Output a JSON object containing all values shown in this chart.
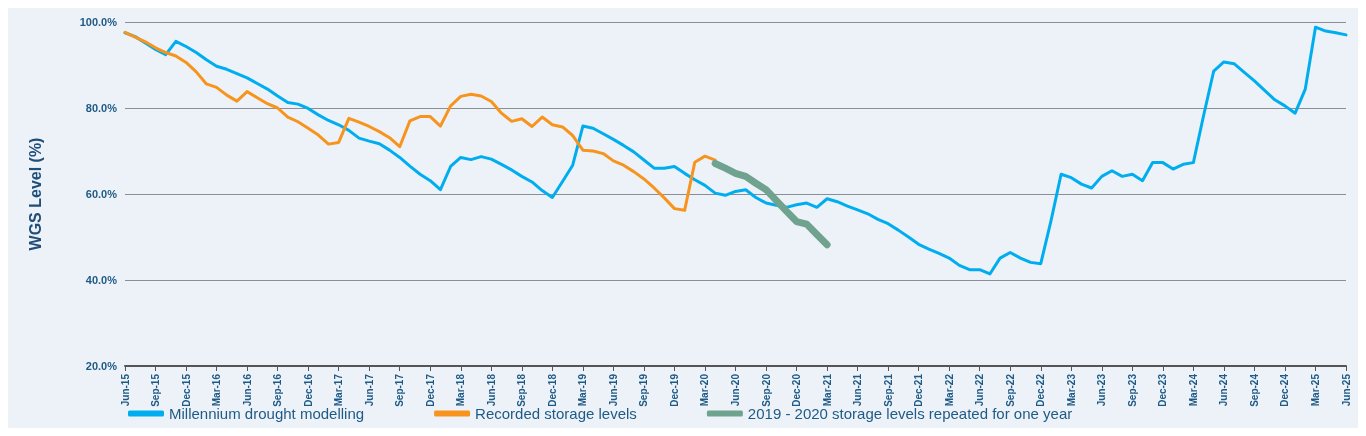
{
  "chart_data": {
    "type": "line",
    "ylabel": "WGS Level (%)",
    "categories": [
      "Jun-15",
      null,
      null,
      "Sep-15",
      null,
      null,
      "Dec-15",
      null,
      null,
      "Mar-16",
      null,
      null,
      "Jun-16",
      null,
      null,
      "Sep-16",
      null,
      null,
      "Dec-16",
      null,
      null,
      "Mar-17",
      null,
      null,
      "Jun-17",
      null,
      null,
      "Sep-17",
      null,
      null,
      "Dec-17",
      null,
      null,
      "Mar-18",
      null,
      null,
      "Jun-18",
      null,
      null,
      "Sep-18",
      null,
      null,
      "Dec-18",
      null,
      null,
      "Mar-19",
      null,
      null,
      "Jun-19",
      null,
      null,
      "Sep-19",
      null,
      null,
      "Dec-19",
      null,
      null,
      "Mar-20",
      null,
      null,
      "Jun-20",
      null,
      null,
      "Sep-20",
      null,
      null,
      "Dec-20",
      null,
      null,
      "Mar-21",
      null,
      null,
      "Jun-21",
      null,
      null,
      "Sep-21",
      null,
      null,
      "Dec-21",
      null,
      null,
      "Mar-22",
      null,
      null,
      "Jun-22",
      null,
      null,
      "Sep-22",
      null,
      null,
      "Dec-22",
      null,
      null,
      "Mar-23",
      null,
      null,
      "Jun-23",
      null,
      null,
      "Sep-23",
      null,
      null,
      "Dec-23",
      null,
      null,
      "Mar-24",
      null,
      null,
      "Jun-24",
      null,
      null,
      "Sep-24",
      null,
      null,
      "Dec-24",
      null,
      null,
      "Mar-25",
      null,
      null,
      "Jun-25"
    ],
    "series": [
      {
        "name": "Millennium drought modelling",
        "color": "#00aeef",
        "values": [
          97.5,
          96.6,
          95.1,
          93.6,
          92.4,
          95.5,
          94.3,
          92.9,
          91.2,
          89.7,
          89.0,
          88.0,
          87.0,
          85.7,
          84.4,
          82.8,
          81.3,
          80.9,
          79.9,
          78.4,
          77.1,
          76.1,
          74.8,
          73.0,
          72.3,
          71.7,
          70.2,
          68.5,
          66.5,
          64.6,
          63.1,
          61.0,
          66.4,
          68.5,
          68.0,
          68.7,
          68.1,
          66.9,
          65.6,
          64.1,
          62.8,
          60.8,
          59.2,
          62.9,
          66.7,
          75.8,
          75.3,
          74.0,
          72.7,
          71.3,
          69.8,
          67.9,
          66.0,
          66.0,
          66.4,
          64.8,
          63.3,
          62.0,
          60.2,
          59.7,
          60.6,
          61.0,
          59.2,
          57.9,
          57.4,
          56.9,
          57.5,
          57.9,
          56.9,
          58.9,
          58.2,
          57.2,
          56.3,
          55.4,
          54.1,
          53.1,
          51.6,
          50.0,
          48.3,
          47.2,
          46.2,
          45.1,
          43.4,
          42.4,
          42.4,
          41.4,
          45.1,
          46.4,
          45.1,
          44.1,
          43.8,
          53.7,
          64.6,
          63.8,
          62.3,
          61.4,
          64.1,
          65.4,
          64.1,
          64.6,
          63.1,
          67.3,
          67.3,
          65.8,
          66.9,
          67.3,
          78.2,
          88.6,
          90.7,
          90.3,
          88.3,
          86.3,
          84.1,
          81.9,
          80.5,
          78.8,
          84.4,
          98.8,
          97.9,
          97.5,
          97.0
        ]
      },
      {
        "name": "Recorded storage levels",
        "color": "#f7941d",
        "values": [
          97.6,
          96.5,
          95.4,
          94.0,
          92.9,
          92.1,
          90.6,
          88.4,
          85.6,
          84.8,
          83.0,
          81.6,
          83.8,
          82.4,
          81.0,
          80.0,
          77.9,
          76.8,
          75.3,
          73.7,
          71.6,
          72.0,
          77.6,
          76.7,
          75.7,
          74.5,
          73.1,
          71.0,
          77.0,
          78.0,
          78.0,
          75.8,
          80.5,
          82.7,
          83.2,
          82.8,
          81.5,
          78.8,
          76.9,
          77.5,
          75.7,
          77.9,
          76.1,
          75.6,
          73.6,
          70.2,
          70.0,
          69.4,
          67.7,
          66.7,
          65.2,
          63.5,
          61.4,
          59.1,
          56.6,
          56.2,
          67.4,
          68.8,
          67.9,
          null,
          null,
          null,
          null,
          null,
          null,
          null,
          null,
          null,
          null,
          null,
          null,
          null,
          null,
          null,
          null,
          null,
          null,
          null,
          null,
          null,
          null,
          null,
          null,
          null,
          null,
          null,
          null,
          null,
          null,
          null,
          null,
          null,
          null,
          null,
          null,
          null,
          null,
          null,
          null,
          null,
          null,
          null,
          null,
          null,
          null,
          null,
          null,
          null,
          null,
          null,
          null,
          null,
          null,
          null,
          null,
          null,
          null,
          null,
          null,
          null,
          null
        ]
      },
      {
        "name": "2019 - 2020 storage levels repeated for one year",
        "color": "#6fa38f",
        "values": [
          null,
          null,
          null,
          null,
          null,
          null,
          null,
          null,
          null,
          null,
          null,
          null,
          null,
          null,
          null,
          null,
          null,
          null,
          null,
          null,
          null,
          null,
          null,
          null,
          null,
          null,
          null,
          null,
          null,
          null,
          null,
          null,
          null,
          null,
          null,
          null,
          null,
          null,
          null,
          null,
          null,
          null,
          null,
          null,
          null,
          null,
          null,
          null,
          null,
          null,
          null,
          null,
          null,
          null,
          null,
          null,
          null,
          null,
          67.1,
          66.0,
          64.8,
          64.1,
          62.5,
          61.0,
          58.5,
          56.0,
          53.6,
          53.0,
          50.6,
          48.2,
          null,
          null,
          null,
          null,
          null,
          null,
          null,
          null,
          null,
          null,
          null,
          null,
          null,
          null,
          null,
          null,
          null,
          null,
          null,
          null,
          null,
          null,
          null,
          null,
          null,
          null,
          null,
          null,
          null,
          null,
          null,
          null,
          null,
          null,
          null,
          null,
          null,
          null,
          null,
          null,
          null,
          null,
          null,
          null,
          null,
          null,
          null,
          null,
          null,
          null,
          null
        ]
      }
    ],
    "ylim": [
      20,
      100
    ],
    "yticks": [
      {
        "value": 20,
        "label": "20.0%"
      },
      {
        "value": 40,
        "label": "40.0%"
      },
      {
        "value": 60,
        "label": "60.0%"
      },
      {
        "value": 80,
        "label": "80.0%"
      },
      {
        "value": 100,
        "label": "100.0%"
      }
    ],
    "grid": "y",
    "legend": "bottom",
    "marker": "none",
    "line_style": "solid"
  }
}
